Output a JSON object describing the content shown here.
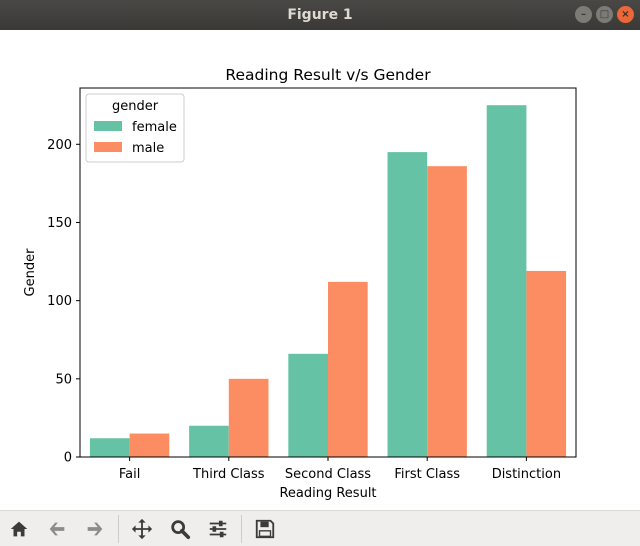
{
  "window": {
    "title": "Figure 1",
    "minimize_label": "–",
    "maximize_label": "□",
    "close_label": "×"
  },
  "toolbar": {
    "items": [
      {
        "icon": "home-icon"
      },
      {
        "icon": "back-arrow-icon"
      },
      {
        "icon": "forward-arrow-icon"
      },
      {
        "icon": "pan-icon"
      },
      {
        "icon": "zoom-icon"
      },
      {
        "icon": "configure-subplots-icon"
      },
      {
        "icon": "save-icon"
      }
    ]
  },
  "chart_data": {
    "type": "bar",
    "title": "Reading Result v/s Gender",
    "xlabel": "Reading Result",
    "ylabel": "Gender",
    "categories": [
      "Fail",
      "Third Class",
      "Second Class",
      "First Class",
      "Distinction"
    ],
    "series": [
      {
        "name": "female",
        "color": "#66c2a5",
        "values": [
          12,
          20,
          66,
          195,
          225
        ]
      },
      {
        "name": "male",
        "color": "#fc8d62",
        "values": [
          15,
          50,
          112,
          186,
          119
        ]
      }
    ],
    "ylim": [
      0,
      236
    ],
    "yticks": [
      0,
      50,
      100,
      150,
      200
    ],
    "legend": {
      "title": "gender",
      "placement": "top-left"
    },
    "grid": false
  }
}
